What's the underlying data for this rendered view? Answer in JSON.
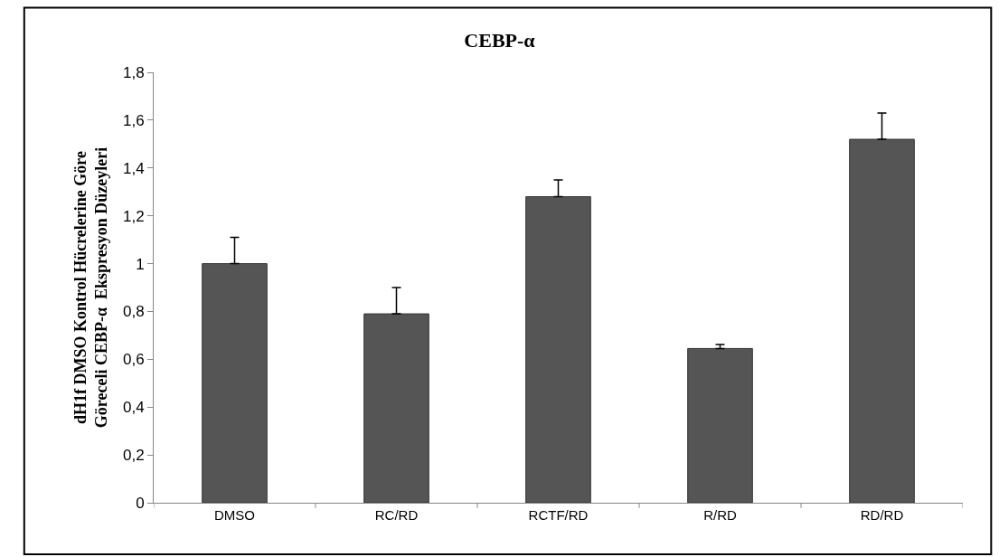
{
  "chart_data": {
    "type": "bar",
    "title": "CEBP-α",
    "ylabel": "dH1f DMSO Kontrol Hücrelerine Göre\nGöreceli CEBP-α  Ekspresyon Düzeyleri",
    "categories": [
      "DMSO",
      "RC/RD",
      "RCTF/RD",
      "R/RD",
      "RD/RD"
    ],
    "values": [
      1.0,
      0.79,
      1.28,
      0.645,
      1.52
    ],
    "errors": [
      [
        1.0,
        1.11
      ],
      [
        0.79,
        0.9
      ],
      [
        1.28,
        1.35
      ],
      [
        0.645,
        0.662
      ],
      [
        1.52,
        1.63
      ]
    ],
    "color": "#555555",
    "ylim": [
      0,
      1.8
    ],
    "yticks": [
      {
        "value": 0,
        "label": "0"
      },
      {
        "value": 0.2,
        "label": "0,2"
      },
      {
        "value": 0.4,
        "label": "0,4"
      },
      {
        "value": 0.6,
        "label": "0,6"
      },
      {
        "value": 0.8,
        "label": "0,8"
      },
      {
        "value": 1,
        "label": "1"
      },
      {
        "value": 1.2,
        "label": "1,2"
      },
      {
        "value": 1.4,
        "label": "1,4"
      },
      {
        "value": 1.6,
        "label": "1,6"
      },
      {
        "value": 1.8,
        "label": "1,8"
      }
    ],
    "grid": false
  }
}
